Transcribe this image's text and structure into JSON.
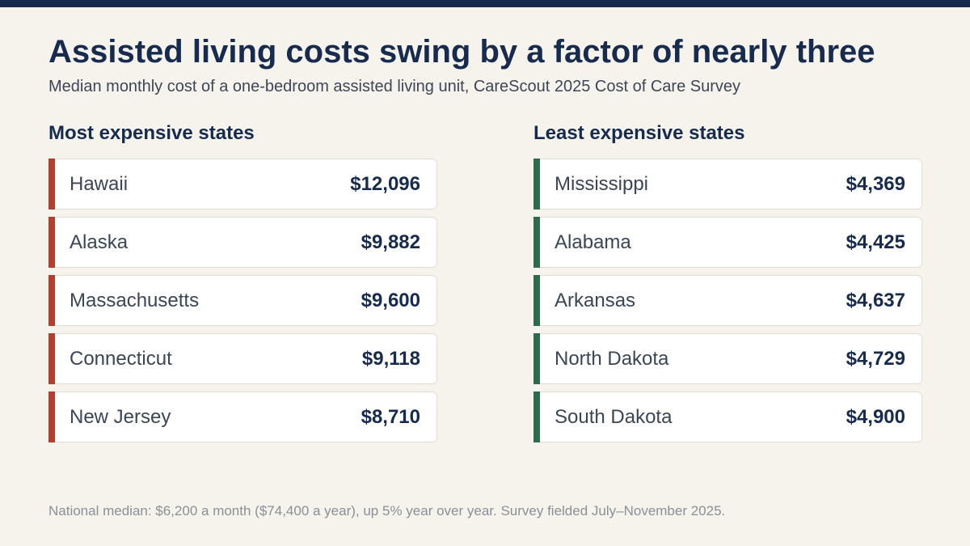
{
  "accent_colors": {
    "top_bar": "#152a4c",
    "expensive": "#b23f30",
    "inexpensive": "#2e6b4b",
    "background": "#f6f3ed"
  },
  "title": "Assisted living costs swing by a factor of nearly three",
  "subtitle": "Median monthly cost of a one-bedroom assisted living unit, CareScout 2025 Cost of Care Survey",
  "most_expensive": {
    "heading": "Most expensive states",
    "rows": [
      {
        "state": "Hawaii",
        "cost": "$12,096"
      },
      {
        "state": "Alaska",
        "cost": "$9,882"
      },
      {
        "state": "Massachusetts",
        "cost": "$9,600"
      },
      {
        "state": "Connecticut",
        "cost": "$9,118"
      },
      {
        "state": "New Jersey",
        "cost": "$8,710"
      }
    ]
  },
  "least_expensive": {
    "heading": "Least expensive states",
    "rows": [
      {
        "state": "Mississippi",
        "cost": "$4,369"
      },
      {
        "state": "Alabama",
        "cost": "$4,425"
      },
      {
        "state": "Arkansas",
        "cost": "$4,637"
      },
      {
        "state": "North Dakota",
        "cost": "$4,729"
      },
      {
        "state": "South Dakota",
        "cost": "$4,900"
      }
    ]
  },
  "footnote": "National median: $6,200 a month ($74,400 a year), up 5% year over year. Survey fielded July–November 2025."
}
